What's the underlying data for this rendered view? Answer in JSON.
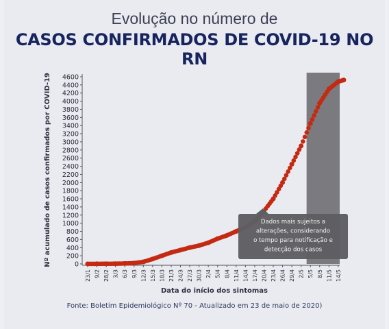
{
  "header": {
    "subtitle": "Evolução no número de",
    "title": "CASOS CONFIRMADOS DE COVID-19 NO RN"
  },
  "footer": {
    "source": "Fonte: Boletim Epidemiológico Nº 70 - Atualizado em 23 de maio de 2020)"
  },
  "colors": {
    "series": "#c42a12",
    "shade": "#6e6e72",
    "title": "#17245e",
    "callout_bg": "#5e5e62"
  },
  "chart_data": {
    "type": "scatter",
    "xlabel": "Data do início dos sintomas",
    "ylabel": "Nº acumulado de casos confirmados por COVID-19",
    "ylim": [
      0,
      4600
    ],
    "yticks": [
      0,
      200,
      400,
      600,
      800,
      1000,
      1200,
      1400,
      1600,
      1800,
      2000,
      2200,
      2400,
      2600,
      2800,
      3000,
      3200,
      3400,
      3600,
      3800,
      4000,
      4200,
      4400,
      4600
    ],
    "x_tick_labels": [
      "23/1",
      "9/2",
      "28/2",
      "3/3",
      "6/3",
      "9/3",
      "12/3",
      "15/3",
      "18/3",
      "21/3",
      "24/3",
      "27/3",
      "30/3",
      "2/4",
      "5/4",
      "8/4",
      "11/4",
      "14/4",
      "17/4",
      "20/4",
      "23/4",
      "26/4",
      "29/4",
      "2/5",
      "5/5",
      "8/5",
      "11/5",
      "14/5"
    ],
    "shaded_region_from": "3/5",
    "annotation": "Dados mais sujeitos a alterações, considerando o tempo para notificação e detecção dos casos",
    "series": [
      {
        "values": [
          {
            "x": "23/1",
            "y": 1
          },
          {
            "x": "9/2",
            "y": 2
          },
          {
            "x": "28/2",
            "y": 3
          },
          {
            "x": "3/3",
            "y": 5
          },
          {
            "x": "6/3",
            "y": 10
          },
          {
            "x": "9/3",
            "y": 20
          },
          {
            "x": "12/3",
            "y": 50
          },
          {
            "x": "15/3",
            "y": 120
          },
          {
            "x": "18/3",
            "y": 200
          },
          {
            "x": "21/3",
            "y": 280
          },
          {
            "x": "24/3",
            "y": 340
          },
          {
            "x": "27/3",
            "y": 400
          },
          {
            "x": "30/3",
            "y": 450
          },
          {
            "x": "2/4",
            "y": 520
          },
          {
            "x": "5/4",
            "y": 620
          },
          {
            "x": "8/4",
            "y": 700
          },
          {
            "x": "11/4",
            "y": 800
          },
          {
            "x": "14/4",
            "y": 900
          },
          {
            "x": "17/4",
            "y": 1050
          },
          {
            "x": "20/4",
            "y": 1300
          },
          {
            "x": "23/4",
            "y": 1600
          },
          {
            "x": "26/4",
            "y": 2000
          },
          {
            "x": "29/4",
            "y": 2450
          },
          {
            "x": "2/5",
            "y": 2900
          },
          {
            "x": "5/5",
            "y": 3450
          },
          {
            "x": "8/5",
            "y": 3950
          },
          {
            "x": "11/5",
            "y": 4300
          },
          {
            "x": "14/5",
            "y": 4480
          },
          {
            "x": "16/5",
            "y": 4520
          }
        ]
      }
    ]
  }
}
